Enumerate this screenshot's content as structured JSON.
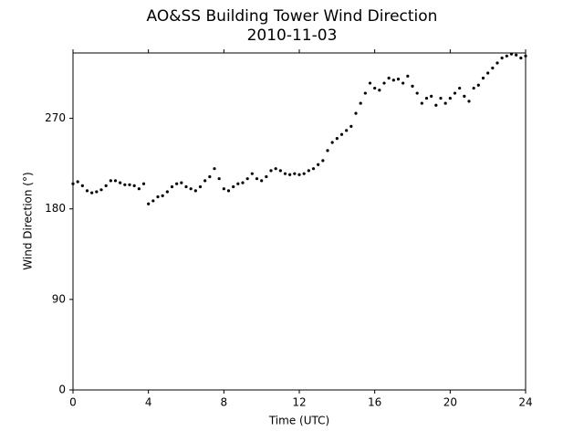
{
  "chart_data": {
    "type": "scatter",
    "title": "AO&SS Building Tower Wind Direction",
    "subtitle": "2010-11-03",
    "x_label": "Time (UTC)",
    "y_label": "Wind Direction (°)",
    "color": "#000000",
    "xlim": [
      0,
      24
    ],
    "xticks": [
      0,
      4,
      8,
      12,
      16,
      20,
      24
    ],
    "ylim": [
      0,
      335
    ],
    "yticks": [
      0,
      90,
      180,
      270
    ],
    "x": [
      0,
      0.25,
      0.5,
      0.75,
      1,
      1.25,
      1.5,
      1.75,
      2,
      2.25,
      2.5,
      2.75,
      3,
      3.25,
      3.5,
      3.75,
      4,
      4.25,
      4.5,
      4.75,
      5,
      5.25,
      5.5,
      5.75,
      6,
      6.25,
      6.5,
      6.75,
      7,
      7.25,
      7.5,
      7.75,
      8,
      8.25,
      8.5,
      8.75,
      9,
      9.25,
      9.5,
      9.75,
      10,
      10.25,
      10.5,
      10.75,
      11,
      11.25,
      11.5,
      11.75,
      12,
      12.25,
      12.5,
      12.75,
      13,
      13.25,
      13.5,
      13.75,
      14,
      14.25,
      14.5,
      14.75,
      15,
      15.25,
      15.5,
      15.75,
      16,
      16.25,
      16.5,
      16.75,
      17,
      17.25,
      17.5,
      17.75,
      18,
      18.25,
      18.5,
      18.75,
      19,
      19.25,
      19.5,
      19.75,
      20,
      20.25,
      20.5,
      20.75,
      21,
      21.25,
      21.5,
      21.75,
      22,
      22.25,
      22.5,
      22.75,
      23,
      23.25,
      23.5,
      23.75,
      24
    ],
    "values": [
      205,
      207,
      203,
      198,
      196,
      197,
      199,
      203,
      208,
      208,
      206,
      204,
      204,
      203,
      200,
      205,
      185,
      188,
      192,
      193,
      197,
      202,
      205,
      206,
      202,
      200,
      198,
      202,
      208,
      212,
      220,
      210,
      200,
      198,
      202,
      205,
      206,
      210,
      215,
      210,
      208,
      212,
      218,
      220,
      218,
      215,
      214,
      215,
      214,
      215,
      218,
      220,
      224,
      228,
      238,
      246,
      250,
      254,
      258,
      262,
      275,
      285,
      295,
      305,
      300,
      298,
      305,
      310,
      308,
      309,
      305,
      312,
      302,
      295,
      285,
      290,
      292,
      283,
      290,
      285,
      290,
      295,
      300,
      292,
      287,
      300,
      303,
      310,
      315,
      320,
      325,
      330,
      332,
      334,
      333,
      330,
      332
    ]
  }
}
